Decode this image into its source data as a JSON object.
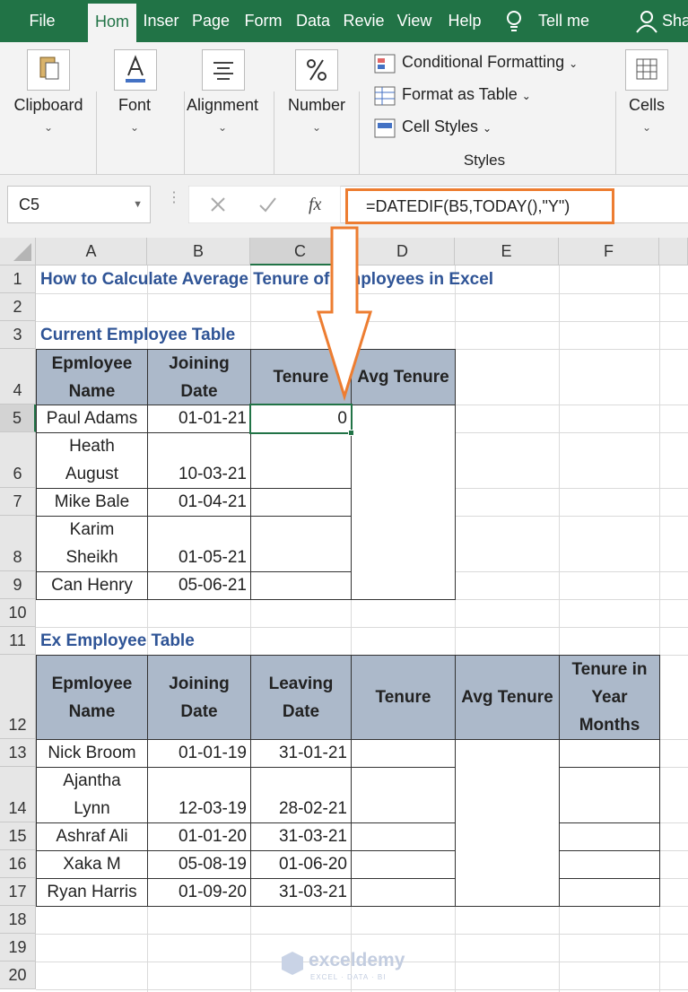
{
  "ribbon": {
    "tabs": [
      "File",
      "Hom",
      "Inser",
      "Page",
      "Form",
      "Data",
      "Revie",
      "View",
      "Help"
    ],
    "tell_me": "Tell me",
    "share": "Sha",
    "groups": {
      "clipboard": "Clipboard",
      "font": "Font",
      "alignment": "Alignment",
      "number": "Number",
      "conditional_formatting": "Conditional Formatting",
      "format_as_table": "Format as Table",
      "cell_styles": "Cell Styles",
      "styles": "Styles",
      "cells": "Cells"
    }
  },
  "formula_bar": {
    "name_box": "C5",
    "fx": "fx",
    "formula": "=DATEDIF(B5,TODAY(),\"Y\")"
  },
  "sheet": {
    "columns": [
      "A",
      "B",
      "C",
      "D",
      "E",
      "F"
    ],
    "rows": [
      1,
      2,
      3,
      4,
      5,
      6,
      7,
      8,
      9,
      10,
      11,
      12,
      13,
      14,
      15,
      16,
      17,
      18,
      19,
      20
    ],
    "title": "How to Calculate Average Tenure of Employees in Excel",
    "table1_label": "Current Employee Table",
    "table1": {
      "header": [
        "Epmloyee\nName",
        "Joining\nDate",
        "Tenure",
        "Avg Tenure"
      ],
      "rows": [
        [
          "Paul Adams",
          "01-01-21",
          0,
          null
        ],
        [
          "Heath\nAugust",
          "10-03-21",
          null,
          null
        ],
        [
          "Mike Bale",
          "01-04-21",
          null,
          null
        ],
        [
          "Karim\nSheikh",
          "01-05-21",
          null,
          null
        ],
        [
          "Can Henry",
          "05-06-21",
          null,
          null
        ]
      ]
    },
    "table2_label": "Ex Employee Table",
    "table2": {
      "header": [
        "Epmloyee\nName",
        "Joining\nDate",
        "Leaving\nDate",
        "Tenure",
        "Avg Tenure",
        "Tenure in\nYear\nMonths"
      ],
      "rows": [
        [
          "Nick Broom",
          "01-01-19",
          "31-01-21",
          null,
          null,
          null
        ],
        [
          "Ajantha\nLynn",
          "12-03-19",
          "28-02-21",
          null,
          null,
          null
        ],
        [
          "Ashraf Ali",
          "01-01-20",
          "31-03-21",
          null,
          null,
          null
        ],
        [
          "Xaka M",
          "05-08-19",
          "01-06-20",
          null,
          null,
          null
        ],
        [
          "Ryan Harris",
          "01-09-20",
          "31-03-21",
          null,
          null,
          null
        ]
      ]
    }
  },
  "watermark": {
    "brand": "exceldemy",
    "tagline": "EXCEL · DATA · BI"
  }
}
